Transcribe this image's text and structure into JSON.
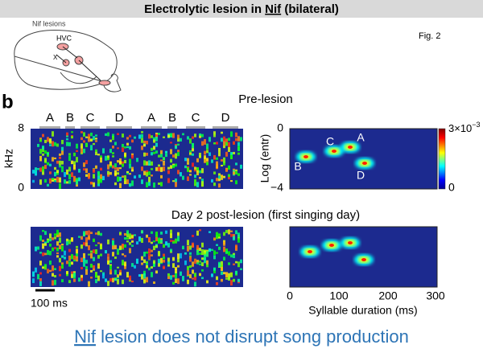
{
  "header": {
    "title_parts": [
      "Electrolytic lesion in ",
      "Nif",
      " (bilateral)"
    ]
  },
  "fig_label": "Fig. 2",
  "schematic": {
    "title": "Nif lesions",
    "hvc": "HVC",
    "x": "X"
  },
  "panel_label": "b",
  "pre_lesion": {
    "title": "Pre-lesion",
    "syllables": [
      "A",
      "B",
      "C",
      "D",
      "A",
      "B",
      "C",
      "D"
    ],
    "y_axis_label": "kHz",
    "y_ticks": [
      "8",
      "0"
    ],
    "scatter": {
      "y_axis_label": "Log (entr)",
      "y_ticks": [
        "0",
        "−4"
      ],
      "cluster_labels": [
        "A",
        "B",
        "C",
        "D"
      ],
      "colorbar": {
        "max_base": "3×10",
        "max_exponent": "−3",
        "min": "0"
      }
    }
  },
  "post_lesion": {
    "title": "Day 2 post-lesion (first singing day)",
    "scale_bar": "100 ms",
    "scatter": {
      "x_axis_label": "Syllable duration (ms)",
      "x_ticks": [
        "0",
        "100",
        "200",
        "300"
      ]
    }
  },
  "caption_parts": [
    "Nif",
    " lesion does not disrupt song production"
  ]
}
